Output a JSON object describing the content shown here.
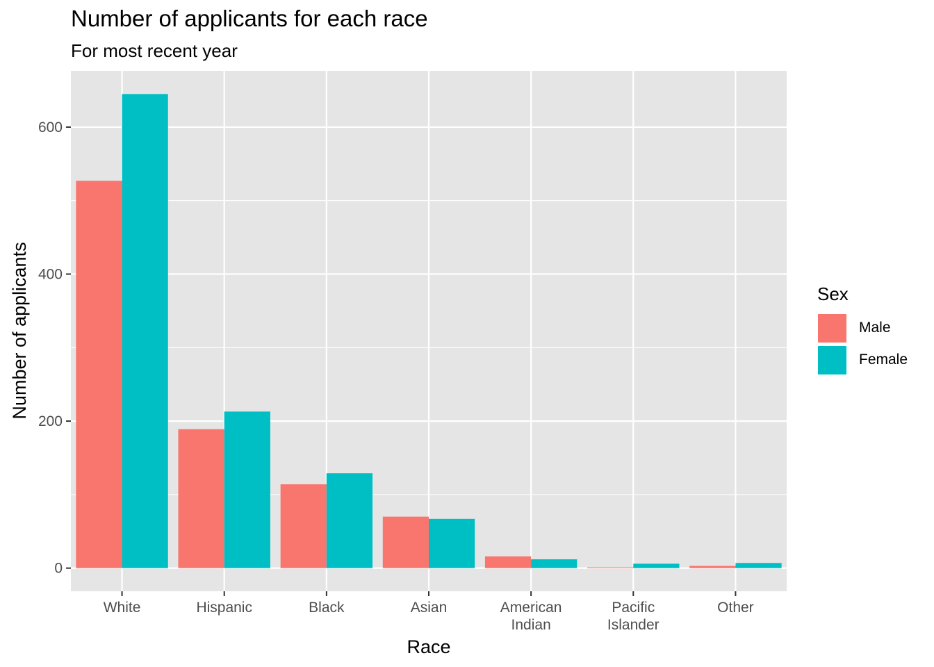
{
  "chart_data": {
    "type": "bar",
    "title": "Number of applicants for each race",
    "subtitle": "For most recent year",
    "xlabel": "Race",
    "ylabel": "Number of applicants",
    "categories": [
      [
        "White"
      ],
      [
        "Hispanic"
      ],
      [
        "Black"
      ],
      [
        "Asian"
      ],
      [
        "American",
        "Indian"
      ],
      [
        "Pacific",
        "Islander"
      ],
      [
        "Other"
      ]
    ],
    "series": [
      {
        "name": "Male",
        "color": "#F8766D",
        "values": [
          527,
          189,
          114,
          70,
          16,
          1,
          3
        ]
      },
      {
        "name": "Female",
        "color": "#00BFC4",
        "values": [
          645,
          213,
          129,
          67,
          12,
          6,
          7
        ]
      }
    ],
    "ylim": [
      -31.5,
      676.5
    ],
    "y_ticks": [
      0,
      200,
      400,
      600
    ],
    "y_tick_labels": [
      "0",
      "200",
      "400",
      "600"
    ],
    "grid": true,
    "legend_position": "right",
    "panel_background": "#E5E5E5"
  },
  "legend": {
    "title": "Sex",
    "items": [
      {
        "label": "Male",
        "color": "#F8766D"
      },
      {
        "label": "Female",
        "color": "#00BFC4"
      }
    ]
  }
}
